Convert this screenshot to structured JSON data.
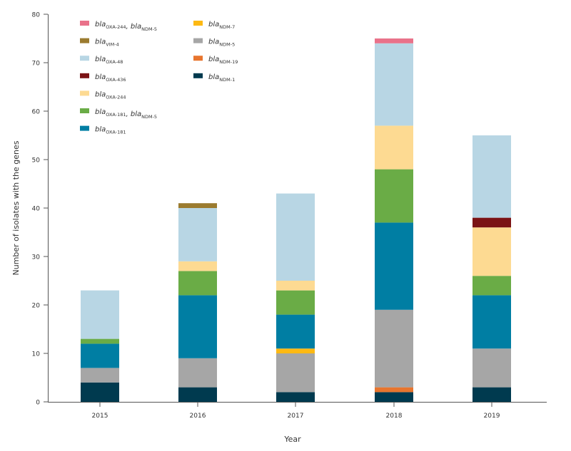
{
  "chart_data": {
    "type": "bar",
    "stacked": true,
    "categories": [
      "2015",
      "2016",
      "2017",
      "2018",
      "2019"
    ],
    "xlabel": "Year",
    "ylabel": "Number of isolates with the genes",
    "ylim": [
      0,
      80
    ],
    "yticks": [
      0,
      10,
      20,
      30,
      40,
      50,
      60,
      70,
      80
    ],
    "grid": false,
    "series": [
      {
        "name": "blaNDM-1",
        "base": "bla",
        "sub": "NDM-1",
        "color": "#003a4f",
        "values": [
          4,
          3,
          2,
          2,
          3
        ]
      },
      {
        "name": "blaNDM-19",
        "base": "bla",
        "sub": "NDM-19",
        "color": "#e8752e",
        "values": [
          0,
          0,
          0,
          1,
          0
        ]
      },
      {
        "name": "blaNDM-5",
        "base": "bla",
        "sub": "NDM-5",
        "color": "#a6a6a6",
        "values": [
          3,
          6,
          8,
          16,
          8
        ]
      },
      {
        "name": "blaNDM-7",
        "base": "bla",
        "sub": "NDM-7",
        "color": "#fdb913",
        "values": [
          0,
          0,
          1,
          0,
          0
        ]
      },
      {
        "name": "blaOXA-181",
        "base": "bla",
        "sub": "OXA-181",
        "color": "#007ea3",
        "values": [
          5,
          13,
          7,
          18,
          11
        ]
      },
      {
        "name": "blaOXA-181, blaNDM-5",
        "base": "bla",
        "sub": "OXA-181",
        "base2": "bla",
        "sub2": "NDM-5",
        "color": "#6aac46",
        "values": [
          1,
          5,
          5,
          11,
          4
        ]
      },
      {
        "name": "blaOXA-244",
        "base": "bla",
        "sub": "OXA-244",
        "color": "#fdda92",
        "values": [
          0,
          2,
          2,
          9,
          10
        ]
      },
      {
        "name": "blaOXA-436",
        "base": "bla",
        "sub": "OXA-436",
        "color": "#7b1315",
        "values": [
          0,
          0,
          0,
          0,
          2
        ]
      },
      {
        "name": "blaOXA-48",
        "base": "bla",
        "sub": "OXA-48",
        "color": "#b8d6e4",
        "values": [
          10,
          11,
          18,
          17,
          17
        ]
      },
      {
        "name": "blaVIM-4",
        "base": "bla",
        "sub": "VIM-4",
        "color": "#9b7b2f",
        "values": [
          0,
          1,
          0,
          0,
          0
        ]
      },
      {
        "name": "blaOXA-244, blaNDM-5",
        "base": "bla",
        "sub": "OXA-244",
        "base2": "bla",
        "sub2": "NDM-5",
        "color": "#e9728a",
        "values": [
          0,
          0,
          0,
          1,
          0
        ]
      }
    ],
    "legend": {
      "placement": "top-left",
      "columns": [
        [
          "blaOXA-244, blaNDM-5",
          "blaVIM-4",
          "blaOXA-48",
          "blaOXA-436",
          "blaOXA-244",
          "blaOXA-181, blaNDM-5",
          "blaOXA-181"
        ],
        [
          "blaNDM-7",
          "blaNDM-5",
          "blaNDM-19",
          "blaNDM-1"
        ]
      ]
    }
  }
}
